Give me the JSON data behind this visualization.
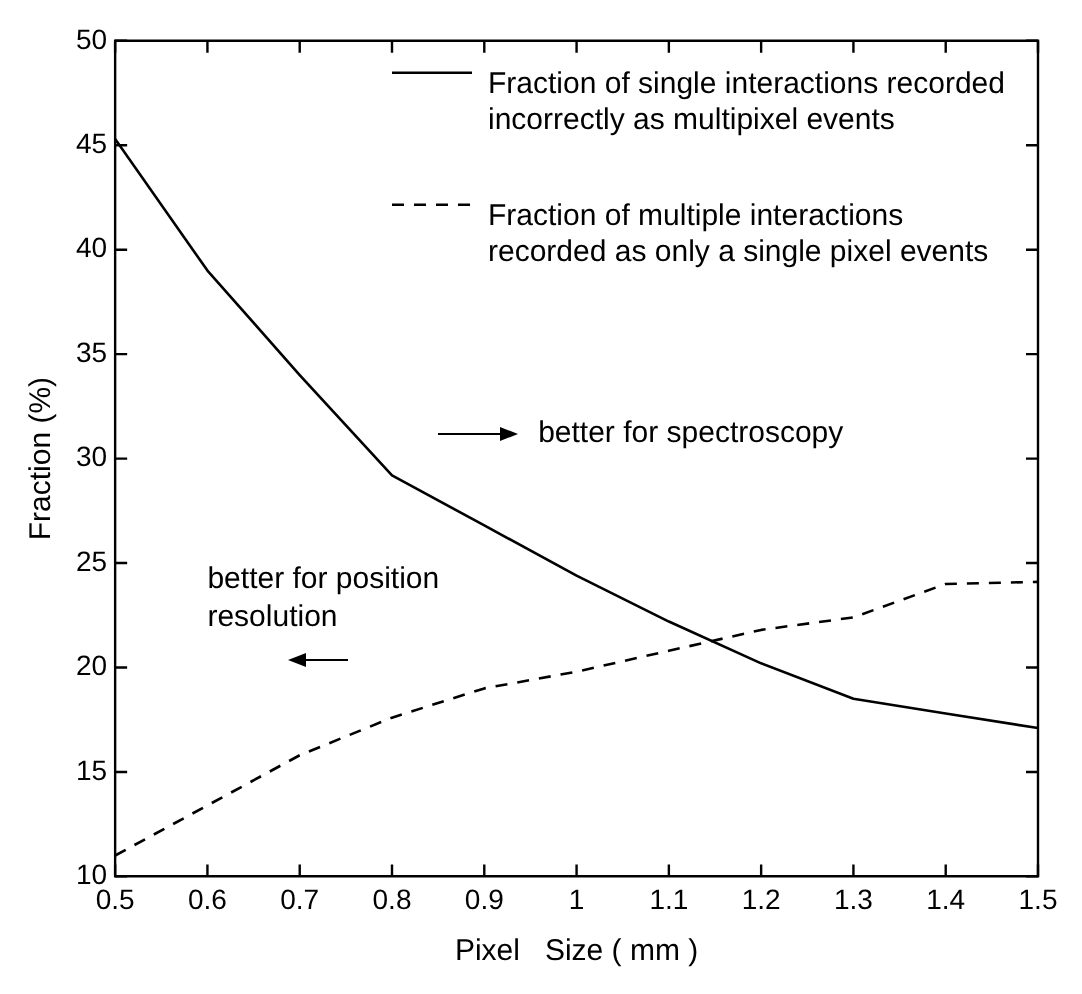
{
  "chart_data": {
    "type": "line",
    "xlabel": "Pixel   Size ( mm )",
    "ylabel": "Fraction (%)",
    "x": [
      0.5,
      0.6,
      0.7,
      0.8,
      0.9,
      1.0,
      1.1,
      1.2,
      1.3,
      1.4,
      1.5
    ],
    "series": [
      {
        "name": "Fraction of single interactions recorded incorrectly as multipixel events",
        "color": "#000000",
        "line_style": "solid",
        "values": [
          45.3,
          39,
          34,
          29.2,
          26.8,
          24.4,
          22.2,
          20.2,
          18.5,
          17.8,
          17.1
        ]
      },
      {
        "name": "Fraction of multiple interactions recorded as only a single pixel events",
        "color": "#000000",
        "line_style": "dashed",
        "values": [
          11,
          13.4,
          15.8,
          17.6,
          19.0,
          19.8,
          20.8,
          21.8,
          22.4,
          24,
          24.1
        ]
      }
    ],
    "xlim": [
      0.5,
      1.5
    ],
    "xticks": [
      0.5,
      0.6,
      0.7,
      0.8,
      0.9,
      1,
      1.1,
      1.2,
      1.3,
      1.4,
      1.5
    ],
    "ylim": [
      10,
      50
    ],
    "yticks": [
      10,
      15,
      20,
      25,
      30,
      35,
      40,
      45,
      50
    ],
    "grid": false,
    "legend": "top",
    "marker": "none",
    "annotations": [
      "better for spectroscopy",
      "better for position resolution"
    ]
  }
}
